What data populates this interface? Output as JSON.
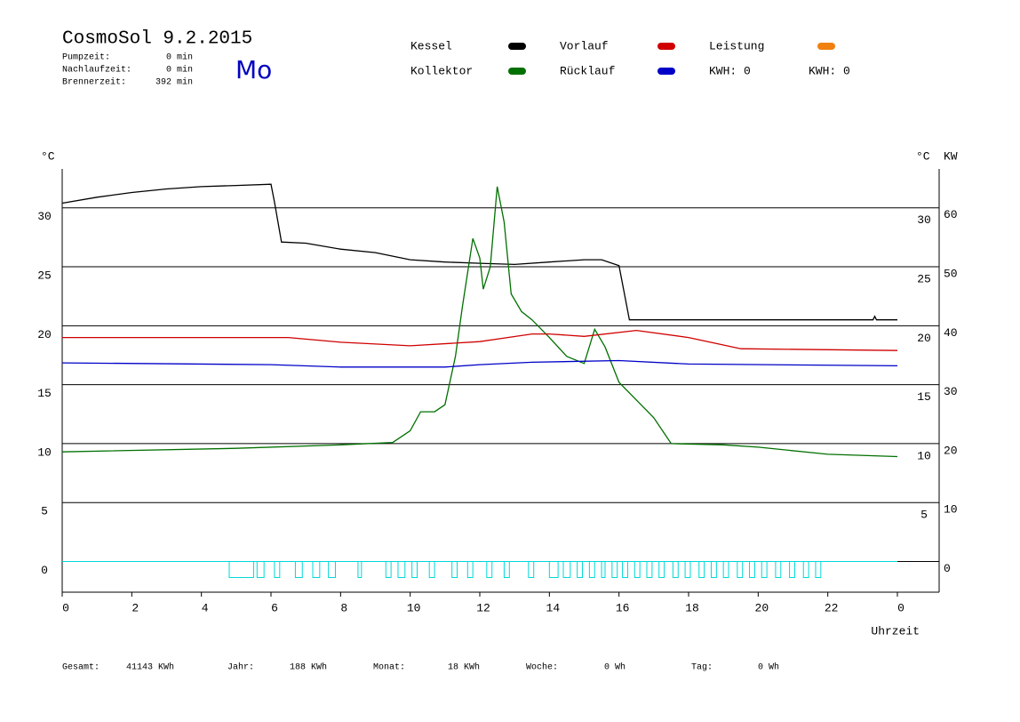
{
  "header": {
    "title": "CosmoSol 9.2.2015",
    "day": "Mo",
    "stats": [
      {
        "label": "Pumpzeit:",
        "value": "0 min"
      },
      {
        "label": "Nachlaufzeit:",
        "value": "0 min"
      },
      {
        "label": "Brennerzeit:",
        "value": "392 min"
      }
    ],
    "kwh": [
      {
        "label": "KWH: 0",
        "color": "#d8902a"
      },
      {
        "label": "KWH: 0",
        "color": "#8a3aa0"
      }
    ]
  },
  "footer": [
    {
      "label": "Gesamt:",
      "value": "41143 KWh"
    },
    {
      "label": "Jahr:",
      "value": "188 KWh"
    },
    {
      "label": "Monat:",
      "value": "18 KWh"
    },
    {
      "label": "Woche:",
      "value": "0 Wh"
    },
    {
      "label": "Tag:",
      "value": "0 Wh"
    }
  ],
  "chart_data": {
    "type": "line",
    "xlabel": "Uhrzeit",
    "ylabel": "°C",
    "y2label_c": "°C",
    "y2label": "KW",
    "xlim": [
      0,
      25.2
    ],
    "xticks": [
      0,
      2,
      4,
      6,
      8,
      10,
      12,
      14,
      16,
      18,
      20,
      22,
      {
        "value": 24,
        "label": "0"
      }
    ],
    "ylim": [
      -2.6,
      33.3
    ],
    "yticks": [
      0,
      5,
      10,
      15,
      20,
      25,
      30
    ],
    "y_right_ticks": [
      5,
      10,
      15,
      20,
      25,
      30
    ],
    "y2lim": [
      -5.2,
      66.6
    ],
    "y2ticks": [
      0,
      10,
      20,
      30,
      40,
      50,
      60
    ],
    "y2color": "#d8902a",
    "grid": true,
    "series": [
      {
        "name": "Kessel",
        "color": "#000000",
        "x": [
          0,
          1,
          2,
          3,
          4,
          5,
          6,
          6.1,
          6.3,
          7,
          8,
          9,
          10,
          11,
          12,
          13,
          14,
          15,
          15.5,
          16,
          16.3,
          23.3,
          23.35,
          23.4,
          24
        ],
        "values": [
          30.4,
          30.9,
          31.3,
          31.6,
          31.8,
          31.9,
          32.0,
          30.5,
          27.1,
          27.0,
          26.5,
          26.2,
          25.6,
          25.4,
          25.3,
          25.2,
          25.4,
          25.6,
          25.6,
          25.1,
          20.5,
          20.5,
          20.8,
          20.5,
          20.5
        ]
      },
      {
        "name": "Kollektor",
        "color": "#007000",
        "x": [
          0,
          5,
          8,
          9.5,
          10,
          10.3,
          10.7,
          11,
          11.3,
          11.5,
          11.8,
          12,
          12.1,
          12.3,
          12.5,
          12.7,
          12.9,
          13.2,
          13.5,
          14,
          14.5,
          15,
          15.3,
          15.6,
          16,
          16.5,
          17,
          17.5,
          19,
          20,
          22,
          24
        ],
        "values": [
          9.3,
          9.6,
          9.9,
          10.1,
          11.1,
          12.7,
          12.7,
          13.3,
          17.4,
          21.6,
          27.4,
          25.75,
          23.1,
          25.0,
          31.8,
          28.8,
          22.7,
          21.2,
          20.5,
          19.0,
          17.4,
          16.8,
          19.7,
          18.2,
          15.2,
          13.7,
          12.2,
          10.0,
          9.9,
          9.7,
          9.1,
          8.9
        ]
      },
      {
        "name": "Vorlauf",
        "color": "#d00000",
        "x": [
          0,
          6.5,
          8,
          10,
          12,
          13.5,
          14,
          15,
          16.5,
          18,
          19.5,
          24
        ],
        "values": [
          19.0,
          19.0,
          18.6,
          18.3,
          18.65,
          19.3,
          19.3,
          19.1,
          19.6,
          19.0,
          18.05,
          17.9
        ]
      },
      {
        "name": "Rücklauf",
        "color": "#0000c8",
        "x": [
          0,
          6,
          8,
          11,
          12,
          13.5,
          16,
          18,
          24
        ],
        "values": [
          16.85,
          16.7,
          16.5,
          16.5,
          16.7,
          16.9,
          17.05,
          16.75,
          16.6
        ]
      },
      {
        "name": "Leistung",
        "color": "#f08010"
      }
    ],
    "pulse_color": "#00d8d8",
    "pulses": [
      [
        4.8,
        5.5
      ],
      [
        5.6,
        5.8
      ],
      [
        6.1,
        6.25
      ],
      [
        6.7,
        6.9
      ],
      [
        7.2,
        7.4
      ],
      [
        7.65,
        7.85
      ],
      [
        8.5,
        8.6
      ],
      [
        9.3,
        9.45
      ],
      [
        9.65,
        9.85
      ],
      [
        10.05,
        10.2
      ],
      [
        10.55,
        10.7
      ],
      [
        11.2,
        11.35
      ],
      [
        11.65,
        11.8
      ],
      [
        12.2,
        12.35
      ],
      [
        12.7,
        12.85
      ],
      [
        13.4,
        13.55
      ],
      [
        14.0,
        14.25
      ],
      [
        14.4,
        14.6
      ],
      [
        14.8,
        14.95
      ],
      [
        15.15,
        15.3
      ],
      [
        15.5,
        15.6
      ],
      [
        15.8,
        15.95
      ],
      [
        16.1,
        16.25
      ],
      [
        16.45,
        16.6
      ],
      [
        16.8,
        16.95
      ],
      [
        17.15,
        17.3
      ],
      [
        17.55,
        17.7
      ],
      [
        17.9,
        18.05
      ],
      [
        18.3,
        18.45
      ],
      [
        18.65,
        18.8
      ],
      [
        19.0,
        19.15
      ],
      [
        19.4,
        19.55
      ],
      [
        19.75,
        19.9
      ],
      [
        20.1,
        20.25
      ],
      [
        20.5,
        20.65
      ],
      [
        20.9,
        21.05
      ],
      [
        21.3,
        21.45
      ],
      [
        21.65,
        21.8
      ]
    ]
  }
}
